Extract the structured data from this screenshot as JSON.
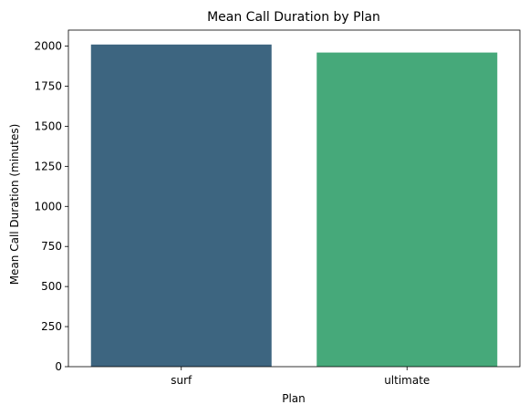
{
  "chart_data": {
    "type": "bar",
    "title": "Mean Call Duration by Plan",
    "xlabel": "Plan",
    "ylabel": "Mean Call Duration (minutes)",
    "categories": [
      "surf",
      "ultimate"
    ],
    "values": [
      2010,
      1960
    ],
    "colors": [
      "#3d6580",
      "#46a97a"
    ],
    "ylim": [
      0,
      2100
    ],
    "yticks": [
      0,
      250,
      500,
      750,
      1000,
      1250,
      1500,
      1750,
      2000
    ],
    "grid": false,
    "legend": "none"
  }
}
